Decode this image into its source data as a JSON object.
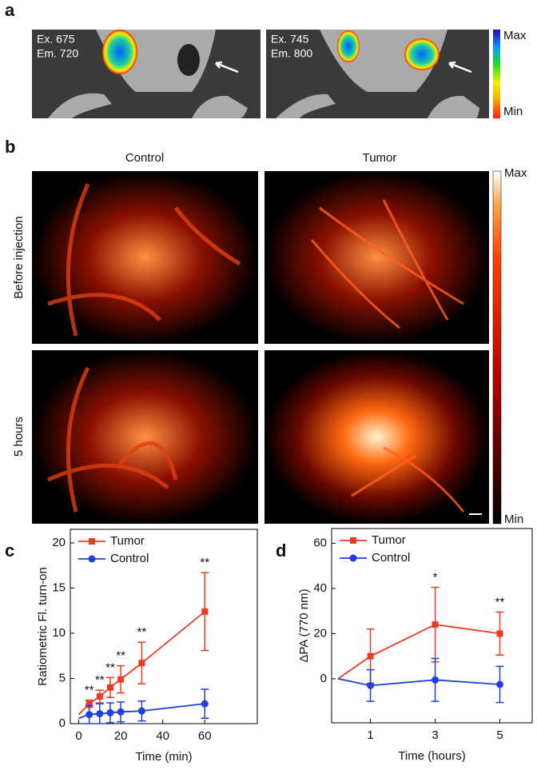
{
  "panel_a": {
    "label": "a",
    "left_image": {
      "line1": "Ex. 675",
      "line2": "Em. 720"
    },
    "right_image": {
      "line1": "Ex. 745",
      "line2": "Em. 800"
    },
    "colorbar": {
      "max": "Max",
      "min": "Min"
    }
  },
  "panel_b": {
    "label": "b",
    "columns": [
      "Control",
      "Tumor"
    ],
    "rows": [
      "Before injection",
      "5 hours"
    ],
    "colorbar": {
      "max": "Max",
      "min": "Min"
    }
  },
  "chart_data": [
    {
      "type": "line",
      "panel_label": "c",
      "ylabel": "Ratiometric Fl. turn-on",
      "xlabel": "Time (min)",
      "x": [
        0,
        5,
        10,
        15,
        20,
        30,
        60
      ],
      "series": [
        {
          "name": "Tumor",
          "color": "#ee3a23",
          "marker": "square",
          "values": [
            1.0,
            2.2,
            3.0,
            4.0,
            4.9,
            6.7,
            12.4
          ],
          "errors": [
            null,
            0.4,
            0.7,
            1.1,
            1.5,
            2.3,
            4.3
          ]
        },
        {
          "name": "Control",
          "color": "#1f3fe0",
          "marker": "circle",
          "values": [
            0.6,
            1.0,
            1.1,
            1.2,
            1.3,
            1.4,
            2.2
          ],
          "errors": [
            null,
            1.0,
            1.1,
            1.1,
            1.1,
            1.1,
            1.6
          ]
        }
      ],
      "significance": [
        null,
        "**",
        "**",
        "**",
        "**",
        "**",
        "**"
      ],
      "xlim": [
        -4,
        85
      ],
      "ylim": [
        0,
        21.5
      ],
      "xticks": [
        0,
        20,
        40,
        60
      ],
      "yticks": [
        0,
        5,
        10,
        15,
        20
      ]
    },
    {
      "type": "line",
      "panel_label": "d",
      "ylabel": "ΔPA (770 nm)",
      "xlabel": "Time (hours)",
      "x": [
        0,
        1,
        3,
        5
      ],
      "series": [
        {
          "name": "Tumor",
          "color": "#ee3a23",
          "marker": "square",
          "values": [
            0,
            10,
            24,
            20
          ],
          "errors": [
            null,
            12,
            16.5,
            9.5
          ]
        },
        {
          "name": "Control",
          "color": "#1f3fe0",
          "marker": "circle",
          "values": [
            0,
            -3,
            -0.5,
            -2.5
          ],
          "errors": [
            null,
            7,
            9.5,
            8
          ]
        }
      ],
      "significance": [
        null,
        null,
        "*",
        "**"
      ],
      "xlim": [
        -0.2,
        6
      ],
      "ylim": [
        -19.5,
        66.5
      ],
      "xticks": [
        1,
        3,
        5
      ],
      "yticks": [
        0,
        20,
        40,
        60
      ]
    }
  ]
}
